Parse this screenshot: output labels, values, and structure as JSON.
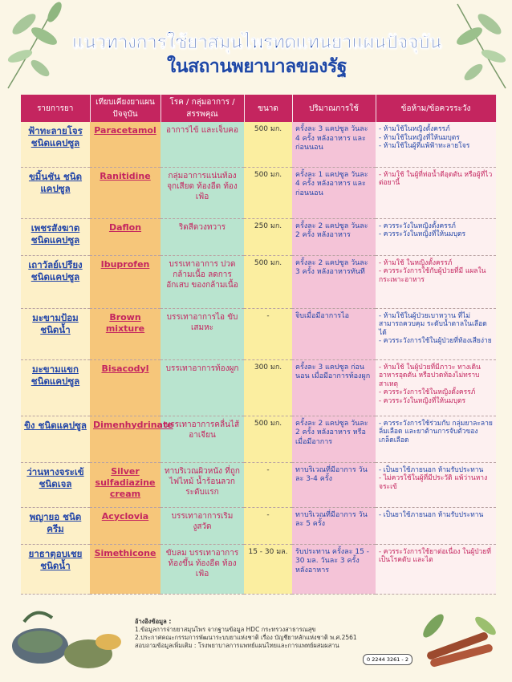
{
  "title": {
    "line1": "แนวทางการใช้ยาสมุนไพรทดแทนยาแผนปัจจุบัน",
    "line2": "ในสถานพยาบาลของรัฐ"
  },
  "headers": [
    "รายการยา",
    "เทียบเคียงยาแผนปัจจุบัน",
    "โรค / กลุ่มอาการ / สรรพคุณ",
    "ขนาด",
    "ปริมาณการใช้",
    "ข้อห้าม/ข้อควรระวัง"
  ],
  "rows": [
    {
      "herb": "ฟ้าทะลายโจร ชนิดแคปซูล",
      "modern": "Paracetamol",
      "indication": "อาการไข้ และเจ็บคอ",
      "dose": "500 มก.",
      "usage": "ครั้งละ 3 แคปซูล วันละ 4 ครั้ง หลังอาหาร และก่อนนอน",
      "cautions": [
        "- ห้ามใช้ในหญิงตั้งครรภ์",
        "- ห้ามใช้ในหญิงที่ให้นมบุตร",
        "- ห้ามใช้ในผู้ที่แพ้ฟ้าทะลายโจร"
      ],
      "red": [
        false,
        false,
        false
      ]
    },
    {
      "herb": "ขมิ้นชัน ชนิดแคปซูล",
      "modern": "Ranitidine",
      "indication": "กลุ่มอาการแน่นท้อง จุกเสียด ท้องอืด ท้องเฟ้อ",
      "dose": "500 มก.",
      "usage": "ครั้งละ 1 แคปซูล วันละ 4 ครั้ง หลังอาหาร และก่อนนอน",
      "cautions": [
        "- ห้ามใช้ ในผู้ที่ท่อน้ำดีอุดตัน หรือผู้ที่ไวต่อยานี้"
      ],
      "red": [
        true
      ]
    },
    {
      "herb": "เพชรสังฆาต ชนิดแคปซูล",
      "modern": "Daflon",
      "indication": "ริดสีดวงทวาร",
      "dose": "250 มก.",
      "usage": "ครั้งละ 2 แคปซูล วันละ 2 ครั้ง หลังอาหาร",
      "cautions": [
        "- ควรระวังในหญิงตั้งครรภ์",
        "- ควรระวังในหญิงที่ให้นมบุตร"
      ],
      "red": [
        false,
        false
      ]
    },
    {
      "herb": "เถาวัลย์เปรียง ชนิดแคปซูล",
      "modern": "Ibuprofen",
      "indication": "บรรเทาอาการ ปวดกล้ามเนื้อ ลดการอักเสบ ของกล้ามเนื้อ",
      "dose": "500 มก.",
      "usage": "ครั้งละ 2 แคปซูล วันละ 3 ครั้ง หลังอาหารทันที",
      "cautions": [
        "- ห้ามใช้ ในหญิงตั้งครรภ์",
        "- ควรระวังการใช้กับผู้ป่วยที่มี แผลในกระเพาะอาหาร"
      ],
      "red": [
        true,
        true
      ]
    },
    {
      "herb": "มะขามป้อม ชนิดน้ำ",
      "modern": "Brown mixture",
      "indication": "บรรเทาอาการไอ ขับเสมหะ",
      "dose": "-",
      "usage": "จิบเมื่อมีอาการไอ",
      "cautions": [
        "- ห้ามใช้ในผู้ป่วยเบาหวาน ที่ไม่สามารถควบคุม ระดับน้ำตาลในเลือดได้",
        "- ควรระวังการใช้ในผู้ป่วยที่ท้องเสียง่าย"
      ],
      "red": [
        false,
        false
      ]
    },
    {
      "herb": "มะขามแขก ชนิดแคปซูล",
      "modern": "Bisacodyl",
      "indication": "บรรเทาอาการท้องผูก",
      "dose": "300 มก.",
      "usage": "ครั้งละ 3 แคปซูล ก่อนนอน เมื่อมีอาการท้องผูก",
      "cautions": [
        "- ห้ามใช้ ในผู้ป่วยที่มีภาวะ ทางเดินอาหารอุดตัน หรือปวดท้องไม่ทราบสาเหตุ",
        "- ควรระวังการใช้ในหญิงตั้งครรภ์",
        "- ควรระวังในหญิงที่ให้นมบุตร"
      ],
      "red": [
        true,
        true,
        true
      ]
    },
    {
      "herb": "ขิง ชนิดแคปซูล",
      "modern": "Dimenhydrinate",
      "indication": "บรรเทาอาการคลื่นไส้ อาเจียน",
      "dose": "500 มก.",
      "usage": "ครั้งละ 2 แคปซูล วันละ 2 ครั้ง หลังอาหาร หรือเมื่อมีอาการ",
      "cautions": [
        "- ควรระวังการใช้ร่วมกับ กลุ่มยาละลายลิ่มเลือด และยาต้านการจับตัวของเกล็ดเลือด"
      ],
      "red": [
        false
      ]
    },
    {
      "herb": "ว่านหางจระเข้ ชนิดเจล",
      "modern": "Silver sulfadiazine cream",
      "indication": "ทาบริเวณผิวหนัง ที่ถูกไฟไหม้ น้ำร้อนลวก ระดับแรก",
      "dose": "-",
      "usage": "ทาบริเวณที่มีอาการ วันละ 3-4 ครั้ง",
      "cautions": [
        "- เป็นยาใช้ภายนอก ห้ามรับประทาน",
        "- ไม่ควรใช้ในผู้ที่มีประวัติ แพ้ว่านหางจระเข้"
      ],
      "red": [
        false,
        true
      ]
    },
    {
      "herb": "พญายอ ชนิดครีม",
      "modern": "Acyclovia",
      "indication": "บรรเทาอาการเริม งูสวัด",
      "dose": "-",
      "usage": "ทาบริเวณที่มีอาการ วันละ 5 ครั้ง",
      "cautions": [
        "- เป็นยาใช้ภายนอก ห้ามรับประทาน"
      ],
      "red": [
        false
      ]
    },
    {
      "herb": "ยาธาตุอบเชย ชนิดน้ำ",
      "modern": "Simethicone",
      "indication": "ขับลม บรรเทาอาการท้องขึ้น ท้องอืด ท้องเฟ้อ",
      "dose": "15 - 30 มล.",
      "usage": "รับประทาน ครั้งละ 15 - 30 มล. วันละ 3 ครั้ง หลังอาหาร",
      "cautions": [
        "- ควรระวังการใช้ยาต่อเนื่อง ในผู้ป่วยที่เป็นโรคตับ และไต"
      ],
      "red": [
        true
      ]
    }
  ],
  "footer": {
    "ref_title": "อ้างอิงข้อมูล :",
    "ref1": "1.ข้อมูลการจ่ายยาสมุนไพร จากฐานข้อมูล HDC กระทรวงสาธารณสุข",
    "ref2": "2.ประกาศคณะกรรมการพัฒนาระบบยาแห่งชาติ เรื่อง บัญชียาหลักแห่งชาติ พ.ศ.2561",
    "contact": "สอบถามข้อมูลเพิ่มเติม : โรงพยาบาลการแพทย์แผนไทยและการแพทย์ผสมผสาน",
    "phone": "0 2244 3261 - 2"
  }
}
